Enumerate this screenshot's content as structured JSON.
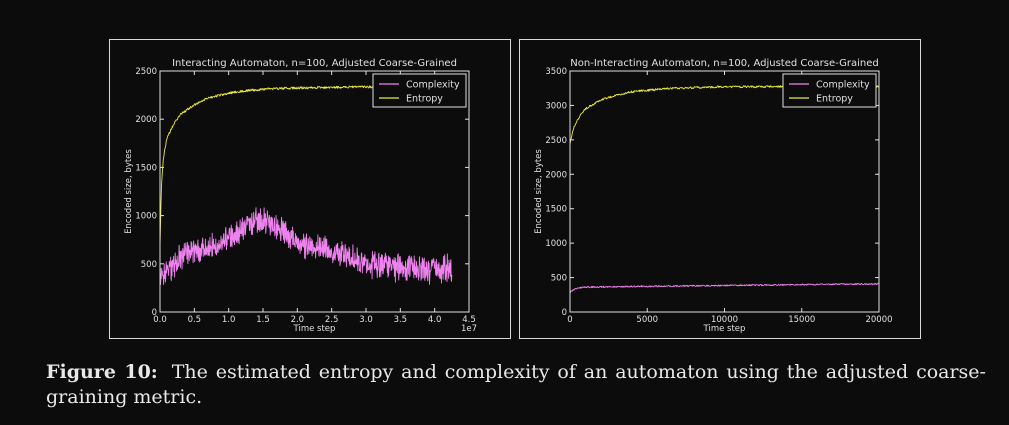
{
  "caption": {
    "label": "Figure 10:",
    "text": "The estimated entropy and complexity of an automaton using the adjusted coarse-graining metric."
  },
  "colors": {
    "complexity": "#ee82ee",
    "entropy": "#e8ea3a",
    "axes": "#e0e0e0",
    "background": "#0c0c0c"
  },
  "chart_data": [
    {
      "type": "line",
      "title": "Interacting Automaton, n=100, Adjusted Coarse-Grained",
      "xlabel": "Time step",
      "ylabel": "Encoded size, bytes",
      "x_offset_label": "1e7",
      "xlim": [
        0,
        4.5
      ],
      "ylim": [
        0,
        2500
      ],
      "xticks": [
        0,
        0.5,
        1.0,
        1.5,
        2.0,
        2.5,
        3.0,
        3.5,
        4.0,
        4.5
      ],
      "xtick_labels": [
        "0.0",
        "0.5",
        "1.0",
        "1.5",
        "2.0",
        "2.5",
        "3.0",
        "3.5",
        "4.0",
        "4.5"
      ],
      "yticks": [
        0,
        500,
        1000,
        1500,
        2000,
        2500
      ],
      "ytick_labels": [
        "0",
        "500",
        "1000",
        "1500",
        "2000",
        "2500"
      ],
      "legend": "top-right",
      "grid": false,
      "series": [
        {
          "name": "Complexity",
          "x": [
            0,
            0.1,
            0.2,
            0.3,
            0.4,
            0.5,
            0.6,
            0.7,
            0.8,
            0.9,
            1.0,
            1.1,
            1.2,
            1.3,
            1.4,
            1.5,
            1.6,
            1.7,
            1.8,
            1.9,
            2.0,
            2.1,
            2.2,
            2.3,
            2.4,
            2.5,
            2.6,
            2.7,
            2.8,
            2.9,
            3.0,
            3.1,
            3.2,
            3.3,
            3.4,
            3.5,
            3.6,
            3.7,
            3.8,
            3.9,
            4.0,
            4.1,
            4.2,
            4.25
          ],
          "y": [
            350,
            420,
            500,
            560,
            600,
            630,
            650,
            660,
            680,
            720,
            760,
            800,
            860,
            910,
            950,
            960,
            930,
            880,
            820,
            760,
            730,
            700,
            690,
            680,
            660,
            620,
            600,
            580,
            560,
            540,
            520,
            500,
            490,
            480,
            470,
            460,
            460,
            450,
            440,
            440,
            430,
            430,
            460,
            420
          ],
          "noise": 120
        },
        {
          "name": "Entropy",
          "x": [
            0,
            0.02,
            0.05,
            0.1,
            0.2,
            0.3,
            0.5,
            0.7,
            1.0,
            1.3,
            1.6,
            2.0,
            2.5,
            3.0,
            3.5,
            4.0,
            4.25
          ],
          "y": [
            700,
            1300,
            1600,
            1800,
            1950,
            2050,
            2150,
            2220,
            2270,
            2300,
            2315,
            2325,
            2330,
            2335,
            2335,
            2335,
            2335
          ],
          "noise": 12
        }
      ]
    },
    {
      "type": "line",
      "title": "Non-Interacting Automaton, n=100, Adjusted Coarse-Grained",
      "xlabel": "Time step",
      "ylabel": "Encoded size, bytes",
      "xlim": [
        0,
        20000
      ],
      "ylim": [
        0,
        3500
      ],
      "xticks": [
        0,
        5000,
        10000,
        15000,
        20000
      ],
      "xtick_labels": [
        "0",
        "5000",
        "10000",
        "15000",
        "20000"
      ],
      "yticks": [
        0,
        500,
        1000,
        1500,
        2000,
        2500,
        3000,
        3500
      ],
      "ytick_labels": [
        "0",
        "500",
        "1000",
        "1500",
        "2000",
        "2500",
        "3000",
        "3500"
      ],
      "legend": "top-right",
      "grid": false,
      "series": [
        {
          "name": "Complexity",
          "x": [
            0,
            200,
            500,
            1000,
            2000,
            4000,
            6000,
            8000,
            10000,
            12000,
            14000,
            16000,
            18000,
            20000
          ],
          "y": [
            280,
            320,
            350,
            360,
            365,
            370,
            375,
            380,
            385,
            390,
            395,
            400,
            405,
            410
          ],
          "noise": 10
        },
        {
          "name": "Entropy",
          "x": [
            0,
            200,
            500,
            1000,
            2000,
            3000,
            4000,
            6000,
            8000,
            10000,
            14000,
            20000
          ],
          "y": [
            2450,
            2650,
            2800,
            2950,
            3080,
            3150,
            3200,
            3240,
            3260,
            3270,
            3275,
            3275
          ],
          "noise": 15
        }
      ]
    }
  ]
}
